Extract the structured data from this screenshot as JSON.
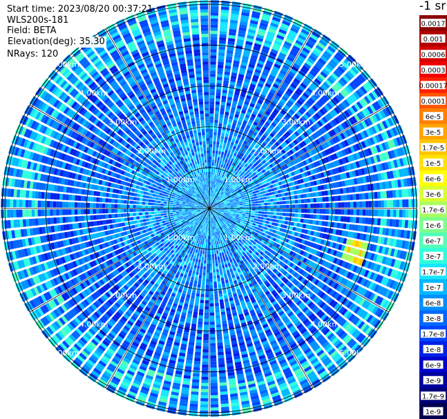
{
  "info": {
    "start_time": "Start time: 2023/08/20 00:37:21",
    "site": "WLS200s-181",
    "field": "Field: BETA",
    "elevation": "Elevation(deg): 35.30",
    "nrays": "NRays: 120"
  },
  "colorbar": {
    "unit": "-1 sr",
    "labels": [
      "0.0017",
      "0.001",
      "0.0006",
      "0.0003",
      "0.00017",
      "0.0001",
      "6e-5",
      "3e-5",
      "1.7e-5",
      "1e-5",
      "6e-6",
      "3e-6",
      "1.7e-6",
      "1e-6",
      "6e-7",
      "3e-7",
      "1.7e-7",
      "1e-7",
      "6e-8",
      "3e-8",
      "1.7e-8",
      "1e-8",
      "6e-9",
      "3e-9",
      "1.7e-9",
      "1e-9"
    ],
    "colors": [
      "#8b0000",
      "#b00000",
      "#d40000",
      "#f00000",
      "#ff2000",
      "#ff5500",
      "#ff8000",
      "#ffa500",
      "#ffc400",
      "#ffe100",
      "#ffff00",
      "#d8ff30",
      "#a8ff60",
      "#7cff8c",
      "#54ffb8",
      "#30ffdc",
      "#18e6ff",
      "#00b8ff",
      "#0090ff",
      "#0068ff",
      "#0044ff",
      "#0020e6",
      "#0000cc",
      "#0000a0",
      "#000078",
      "#000050"
    ]
  },
  "chart_data": {
    "type": "heatmap",
    "projection": "polar-ppi",
    "field": "BETA",
    "range_rings_km": [
      1,
      2,
      3,
      4,
      5
    ],
    "ring_labels": [
      "1.00km",
      "2.00km",
      "3.00km",
      "4.00km",
      "5.00km"
    ],
    "n_rays": 120,
    "elevation_deg": 35.3,
    "dominant_value_range": [
      "1e-8",
      "1e-7"
    ],
    "feature": {
      "azimuth_deg": [
        103,
        110
      ],
      "range_km": [
        3.4,
        3.9
      ],
      "value_approx": "1e-5"
    },
    "grid": true
  }
}
